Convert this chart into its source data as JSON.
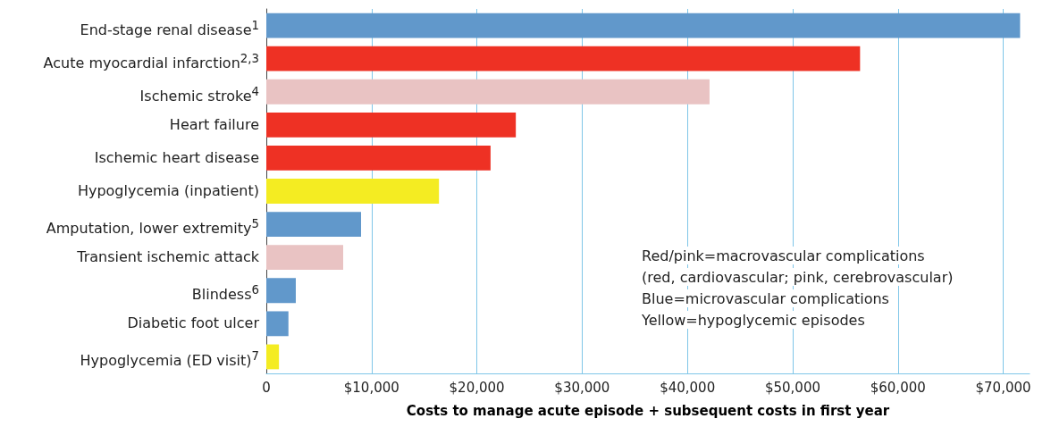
{
  "chart_data": {
    "type": "bar",
    "orientation": "horizontal",
    "xlabel": "Costs to manage acute episode + subsequent costs in first year",
    "categories": [
      "End-stage renal disease$^{1}$",
      "Acute myocardial infarction$^{2,3}$",
      "Ischemic stroke$^{4}$",
      "Heart failure",
      "Ischemic heart disease",
      "Hypoglycemia (inpatient)",
      "Amputation, lower extremity$^{5}$",
      "Transient ischemic attack",
      "Blindess$^{6}$",
      "Diabetic foot ulcer",
      "Hypoglycemia (ED visit)$^{7}$"
    ],
    "values": [
      71600,
      56400,
      42100,
      23700,
      21300,
      16400,
      9000,
      7300,
      2800,
      2100,
      1200
    ],
    "colors": [
      "#6198cb",
      "#ee3124",
      "#e9c3c3",
      "#ee3124",
      "#ee3124",
      "#f4ec22",
      "#6198cb",
      "#e9c3c3",
      "#6198cb",
      "#6198cb",
      "#f4ec22"
    ],
    "xlim": [
      0,
      72500
    ],
    "xticks": [
      0,
      {
        "value": 10000,
        "label": "$10,000"
      },
      {
        "value": 20000,
        "label": "$20,000"
      },
      {
        "value": 30000,
        "label": "$30,000"
      },
      {
        "value": 40000,
        "label": "$40,000"
      },
      {
        "value": 50000,
        "label": "$50,000"
      },
      {
        "value": 60000,
        "label": "$60,000"
      },
      {
        "value": 70000,
        "label": "$70,000"
      }
    ],
    "grid": "x",
    "annotations": [
      "Red/pink=macrovascular complications",
      "(red, cardiovascular; pink, cerebrovascular)",
      "Blue=microvascular complications",
      "Yellow=hypoglycemic episodes"
    ]
  }
}
